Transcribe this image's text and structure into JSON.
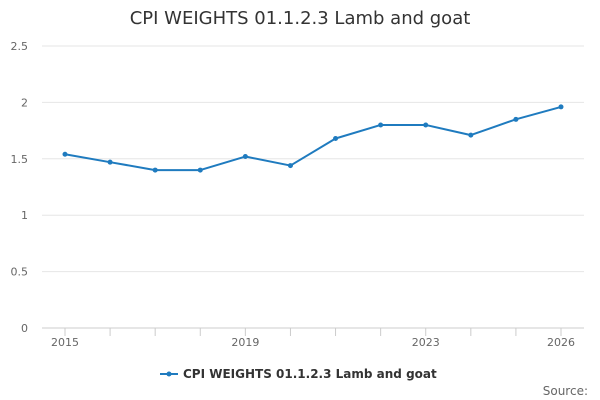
{
  "chart_data": {
    "type": "line",
    "title": "CPI WEIGHTS 01.1.2.3 Lamb and goat",
    "xlabel": "",
    "ylabel": "",
    "x": [
      2015,
      2016,
      2017,
      2018,
      2019,
      2020,
      2021,
      2022,
      2023,
      2024,
      2025,
      2026
    ],
    "x_tick_labels": [
      "2015",
      "2019",
      "2023",
      "2026"
    ],
    "x_tick_values": [
      2015,
      2019,
      2023,
      2026
    ],
    "ylim": [
      0,
      2.5
    ],
    "y_ticks": [
      0,
      0.5,
      1,
      1.5,
      2,
      2.5
    ],
    "y_tick_labels": [
      "0",
      "0.5",
      "1",
      "1.5",
      "2",
      "2.5"
    ],
    "grid": "horizontal",
    "legend_position": "bottom",
    "series": [
      {
        "name": "CPI WEIGHTS 01.1.2.3 Lamb and goat",
        "color": "#1f7bbf",
        "values": [
          1.54,
          1.47,
          1.4,
          1.4,
          1.52,
          1.44,
          1.68,
          1.8,
          1.8,
          1.71,
          1.85,
          1.96
        ]
      }
    ],
    "source_label": "Source:"
  }
}
